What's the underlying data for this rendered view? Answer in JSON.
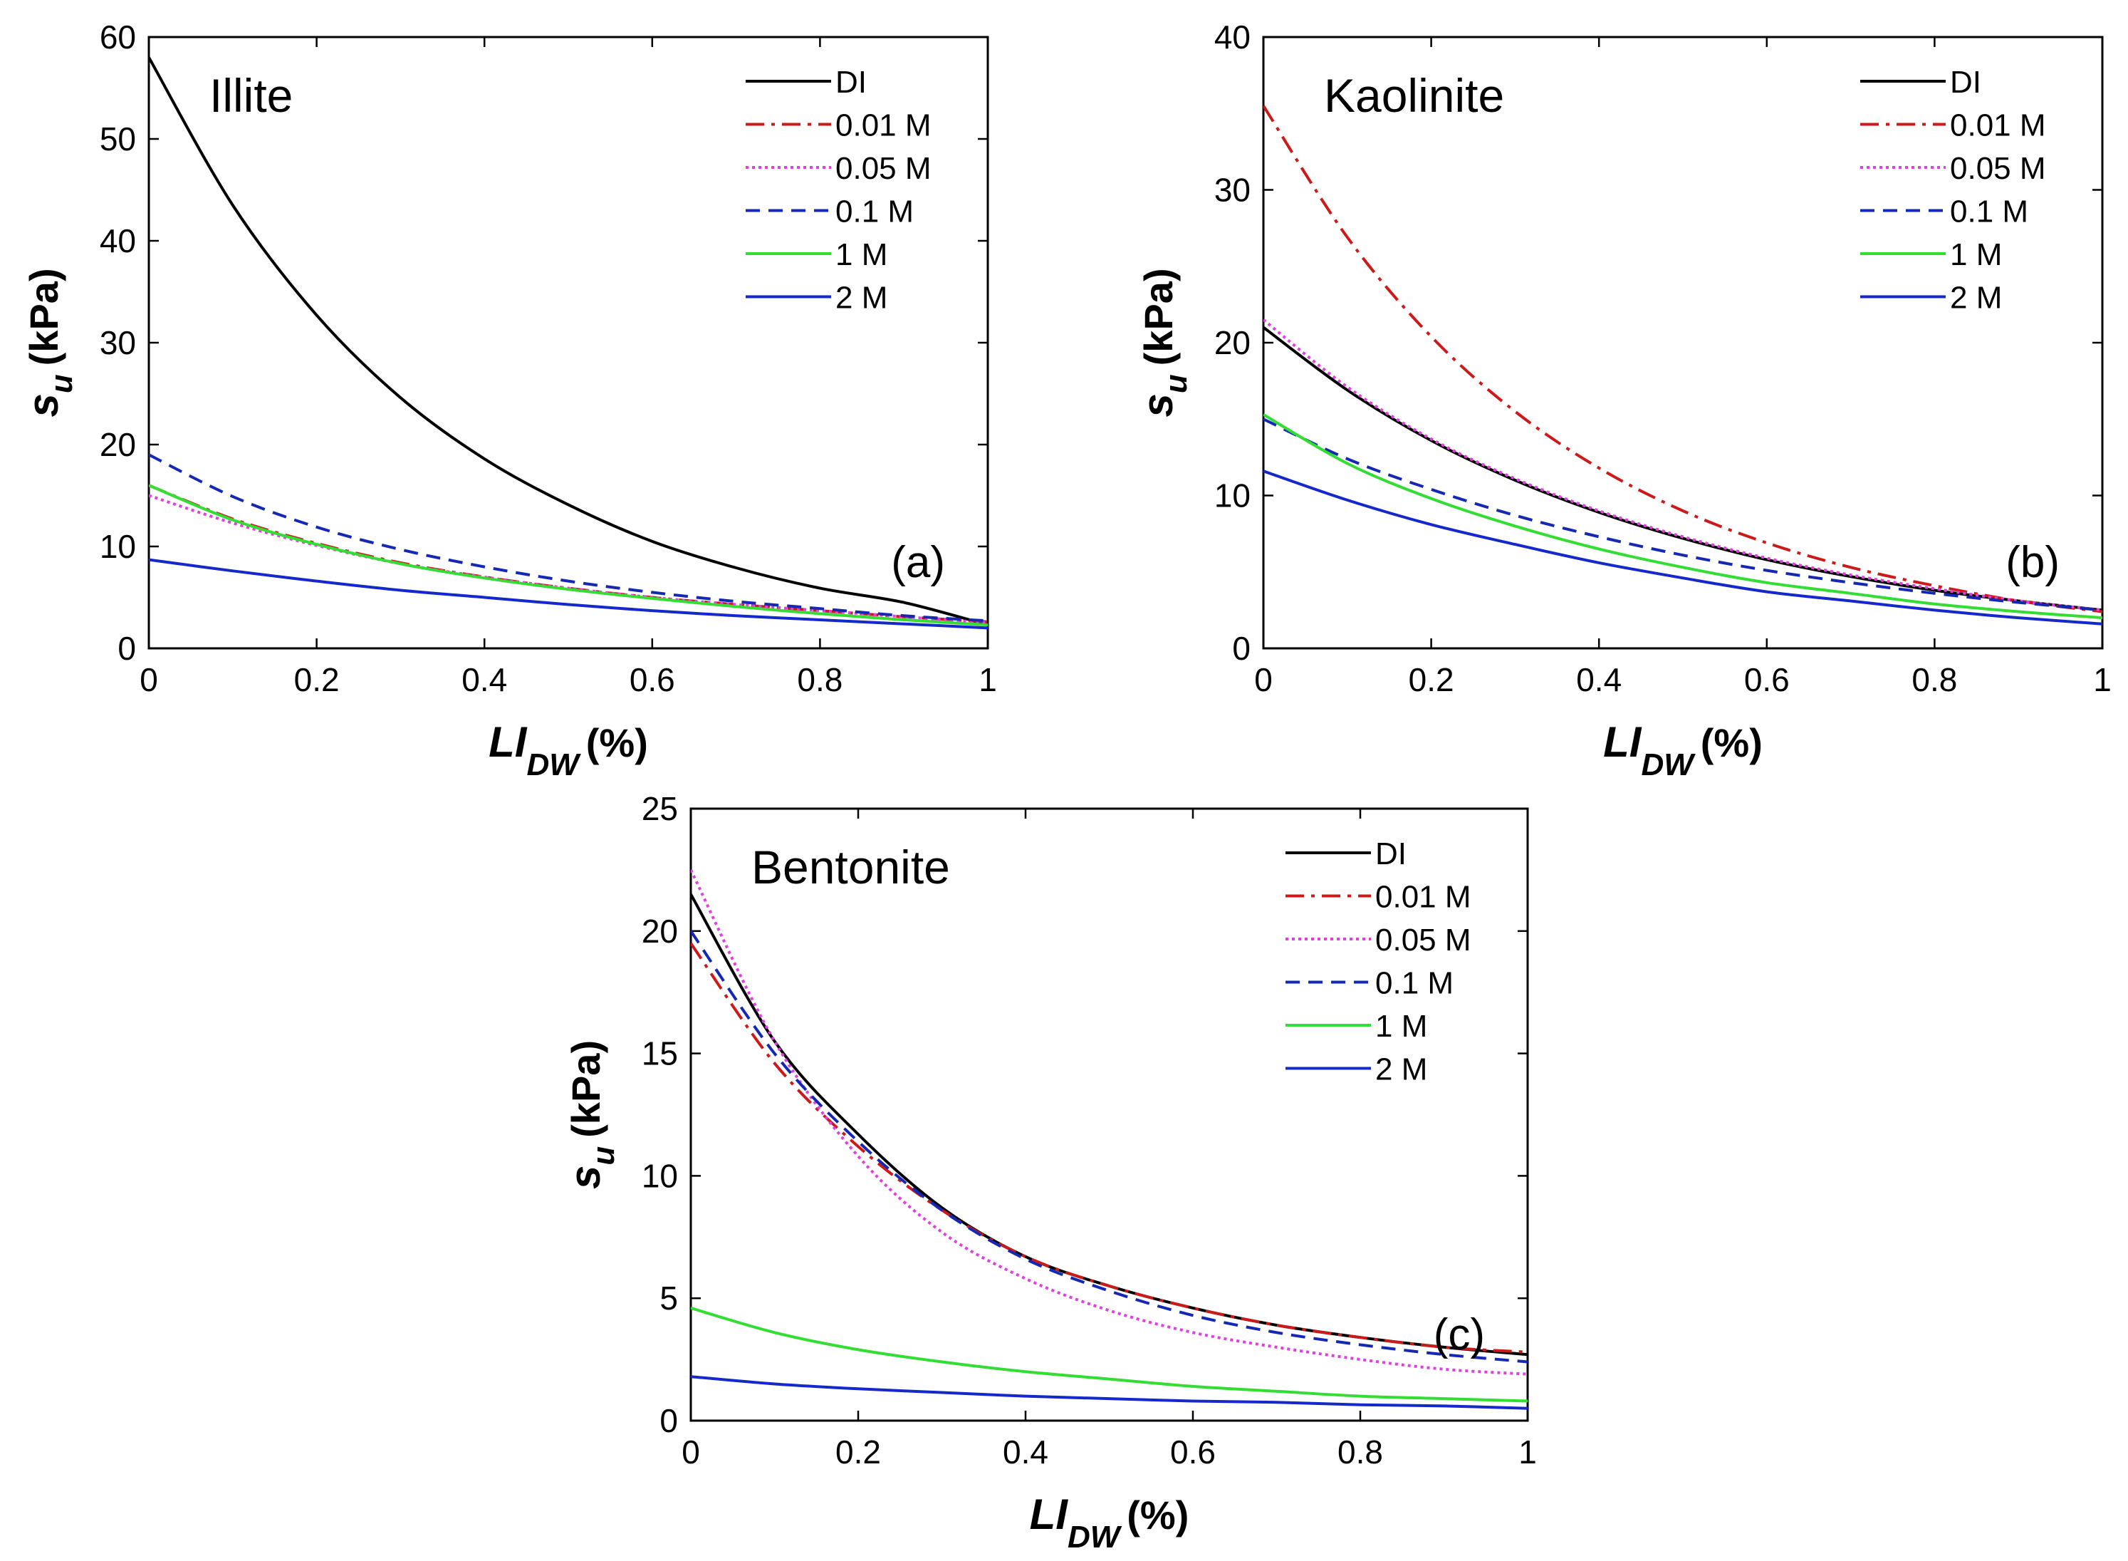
{
  "figure": {
    "legend": [
      "DI",
      "0.01 M",
      "0.05 M",
      "0.1 M",
      "1 M",
      "2 M"
    ]
  },
  "series_styles": [
    {
      "name": "DI",
      "color": "#000000",
      "dash": "none"
    },
    {
      "name": "0.01 M",
      "color": "#cc1a1a",
      "dash": "26 10 5 10"
    },
    {
      "name": "0.05 M",
      "color": "#e23ee0",
      "dash": "4 5"
    },
    {
      "name": "0.1 M",
      "color": "#1428b4",
      "dash": "20 12"
    },
    {
      "name": "1 M",
      "color": "#33dd33",
      "dash": "none"
    },
    {
      "name": "2 M",
      "color": "#1428cc",
      "dash": "none"
    }
  ],
  "chart_data": [
    {
      "type": "line",
      "panel": "(a)",
      "title": "Illite",
      "xlabel": "LI",
      "xlabel_sub": "DW",
      "xlabel_unit": "(%)",
      "ylabel": "s",
      "ylabel_sub": "u",
      "ylabel_unit": "(kPa)",
      "xlim": [
        0,
        1
      ],
      "ylim": [
        0,
        60
      ],
      "xticks": [
        "0",
        "0.2",
        "0.4",
        "0.6",
        "0.8",
        "1"
      ],
      "yticks": [
        "0",
        "10",
        "20",
        "30",
        "40",
        "50",
        "60"
      ],
      "x": [
        0,
        0.1,
        0.2,
        0.3,
        0.4,
        0.5,
        0.6,
        0.7,
        0.8,
        0.9,
        1.0
      ],
      "series": [
        {
          "name": "DI",
          "values": [
            58,
            43.5,
            32.7,
            24.6,
            18.6,
            14.1,
            10.5,
            7.9,
            5.9,
            4.5,
            2.3
          ]
        },
        {
          "name": "0.01 M",
          "values": [
            16,
            12.7,
            10.3,
            8.4,
            7.0,
            5.9,
            5.0,
            4.3,
            3.7,
            3.1,
            2.6
          ]
        },
        {
          "name": "0.05 M",
          "values": [
            15,
            12.3,
            10.1,
            8.3,
            7.0,
            5.9,
            5.0,
            4.3,
            3.7,
            3.1,
            2.5
          ]
        },
        {
          "name": "0.1 M",
          "values": [
            19,
            14.9,
            11.9,
            9.7,
            8.0,
            6.6,
            5.5,
            4.6,
            3.9,
            3.2,
            2.7
          ]
        },
        {
          "name": "1 M",
          "values": [
            16,
            12.6,
            10.2,
            8.3,
            6.9,
            5.8,
            4.9,
            4.1,
            3.4,
            2.8,
            2.3
          ]
        },
        {
          "name": "2 M",
          "values": [
            8.7,
            7.6,
            6.6,
            5.7,
            5.0,
            4.3,
            3.7,
            3.2,
            2.8,
            2.4,
            2.0
          ]
        }
      ]
    },
    {
      "type": "line",
      "panel": "(b)",
      "title": "Kaolinite",
      "xlabel": "LI",
      "xlabel_sub": "DW",
      "xlabel_unit": "(%)",
      "ylabel": "s",
      "ylabel_sub": "u",
      "ylabel_unit": "(kPa)",
      "xlim": [
        0,
        1
      ],
      "ylim": [
        0,
        40
      ],
      "xticks": [
        "0",
        "0.2",
        "0.4",
        "0.6",
        "0.8",
        "1"
      ],
      "yticks": [
        "0",
        "10",
        "20",
        "30",
        "40"
      ],
      "x": [
        0,
        0.1,
        0.2,
        0.3,
        0.4,
        0.5,
        0.6,
        0.7,
        0.8,
        0.9,
        1.0
      ],
      "series": [
        {
          "name": "DI",
          "values": [
            21,
            16.9,
            13.6,
            11.0,
            8.9,
            7.2,
            5.8,
            4.7,
            3.8,
            3.1,
            2.5
          ]
        },
        {
          "name": "0.01 M",
          "values": [
            35.5,
            26.9,
            20.4,
            15.5,
            11.8,
            9.0,
            6.9,
            5.3,
            4.1,
            3.1,
            2.4
          ]
        },
        {
          "name": "0.05 M",
          "values": [
            21.5,
            17.1,
            13.7,
            11.1,
            9.0,
            7.3,
            5.9,
            4.8,
            3.9,
            3.1,
            2.5
          ]
        },
        {
          "name": "0.1 M",
          "values": [
            15.0,
            12.4,
            10.4,
            8.7,
            7.3,
            6.1,
            5.1,
            4.3,
            3.6,
            3.0,
            2.5
          ]
        },
        {
          "name": "1 M",
          "values": [
            15.3,
            12.1,
            9.8,
            8.0,
            6.5,
            5.3,
            4.3,
            3.6,
            2.9,
            2.4,
            2.0
          ]
        },
        {
          "name": "2 M",
          "values": [
            11.6,
            9.7,
            8.1,
            6.8,
            5.6,
            4.6,
            3.7,
            3.1,
            2.5,
            2.0,
            1.6
          ]
        }
      ]
    },
    {
      "type": "line",
      "panel": "(c)",
      "title": "Bentonite",
      "xlabel": "LI",
      "xlabel_sub": "DW",
      "xlabel_unit": "(%)",
      "ylabel": "s",
      "ylabel_sub": "u",
      "ylabel_unit": "(kPa)",
      "xlim": [
        0,
        1
      ],
      "ylim": [
        0,
        25
      ],
      "xticks": [
        "0",
        "0.2",
        "0.4",
        "0.6",
        "0.8",
        "1"
      ],
      "yticks": [
        "0",
        "5",
        "10",
        "15",
        "20",
        "25"
      ],
      "x": [
        0,
        0.1,
        0.2,
        0.3,
        0.4,
        0.5,
        0.6,
        0.7,
        0.8,
        0.9,
        1.0
      ],
      "series": [
        {
          "name": "DI",
          "values": [
            21.5,
            15.5,
            11.7,
            8.7,
            6.7,
            5.5,
            4.6,
            3.9,
            3.4,
            3.0,
            2.7
          ]
        },
        {
          "name": "0.01 M",
          "values": [
            19.5,
            14.6,
            11.2,
            8.6,
            6.7,
            5.5,
            4.6,
            3.9,
            3.4,
            3.0,
            2.8
          ]
        },
        {
          "name": "0.05 M",
          "values": [
            22.5,
            15.5,
            10.8,
            7.7,
            5.8,
            4.5,
            3.6,
            3.0,
            2.5,
            2.1,
            1.9
          ]
        },
        {
          "name": "0.1 M",
          "values": [
            20.0,
            15.0,
            11.4,
            8.6,
            6.6,
            5.3,
            4.3,
            3.6,
            3.1,
            2.7,
            2.4
          ]
        },
        {
          "name": "1 M",
          "values": [
            4.6,
            3.6,
            2.9,
            2.4,
            2.0,
            1.7,
            1.4,
            1.2,
            1.0,
            0.9,
            0.8
          ]
        },
        {
          "name": "2 M",
          "values": [
            1.8,
            1.5,
            1.3,
            1.15,
            1.0,
            0.9,
            0.8,
            0.75,
            0.65,
            0.6,
            0.5
          ]
        }
      ]
    }
  ]
}
